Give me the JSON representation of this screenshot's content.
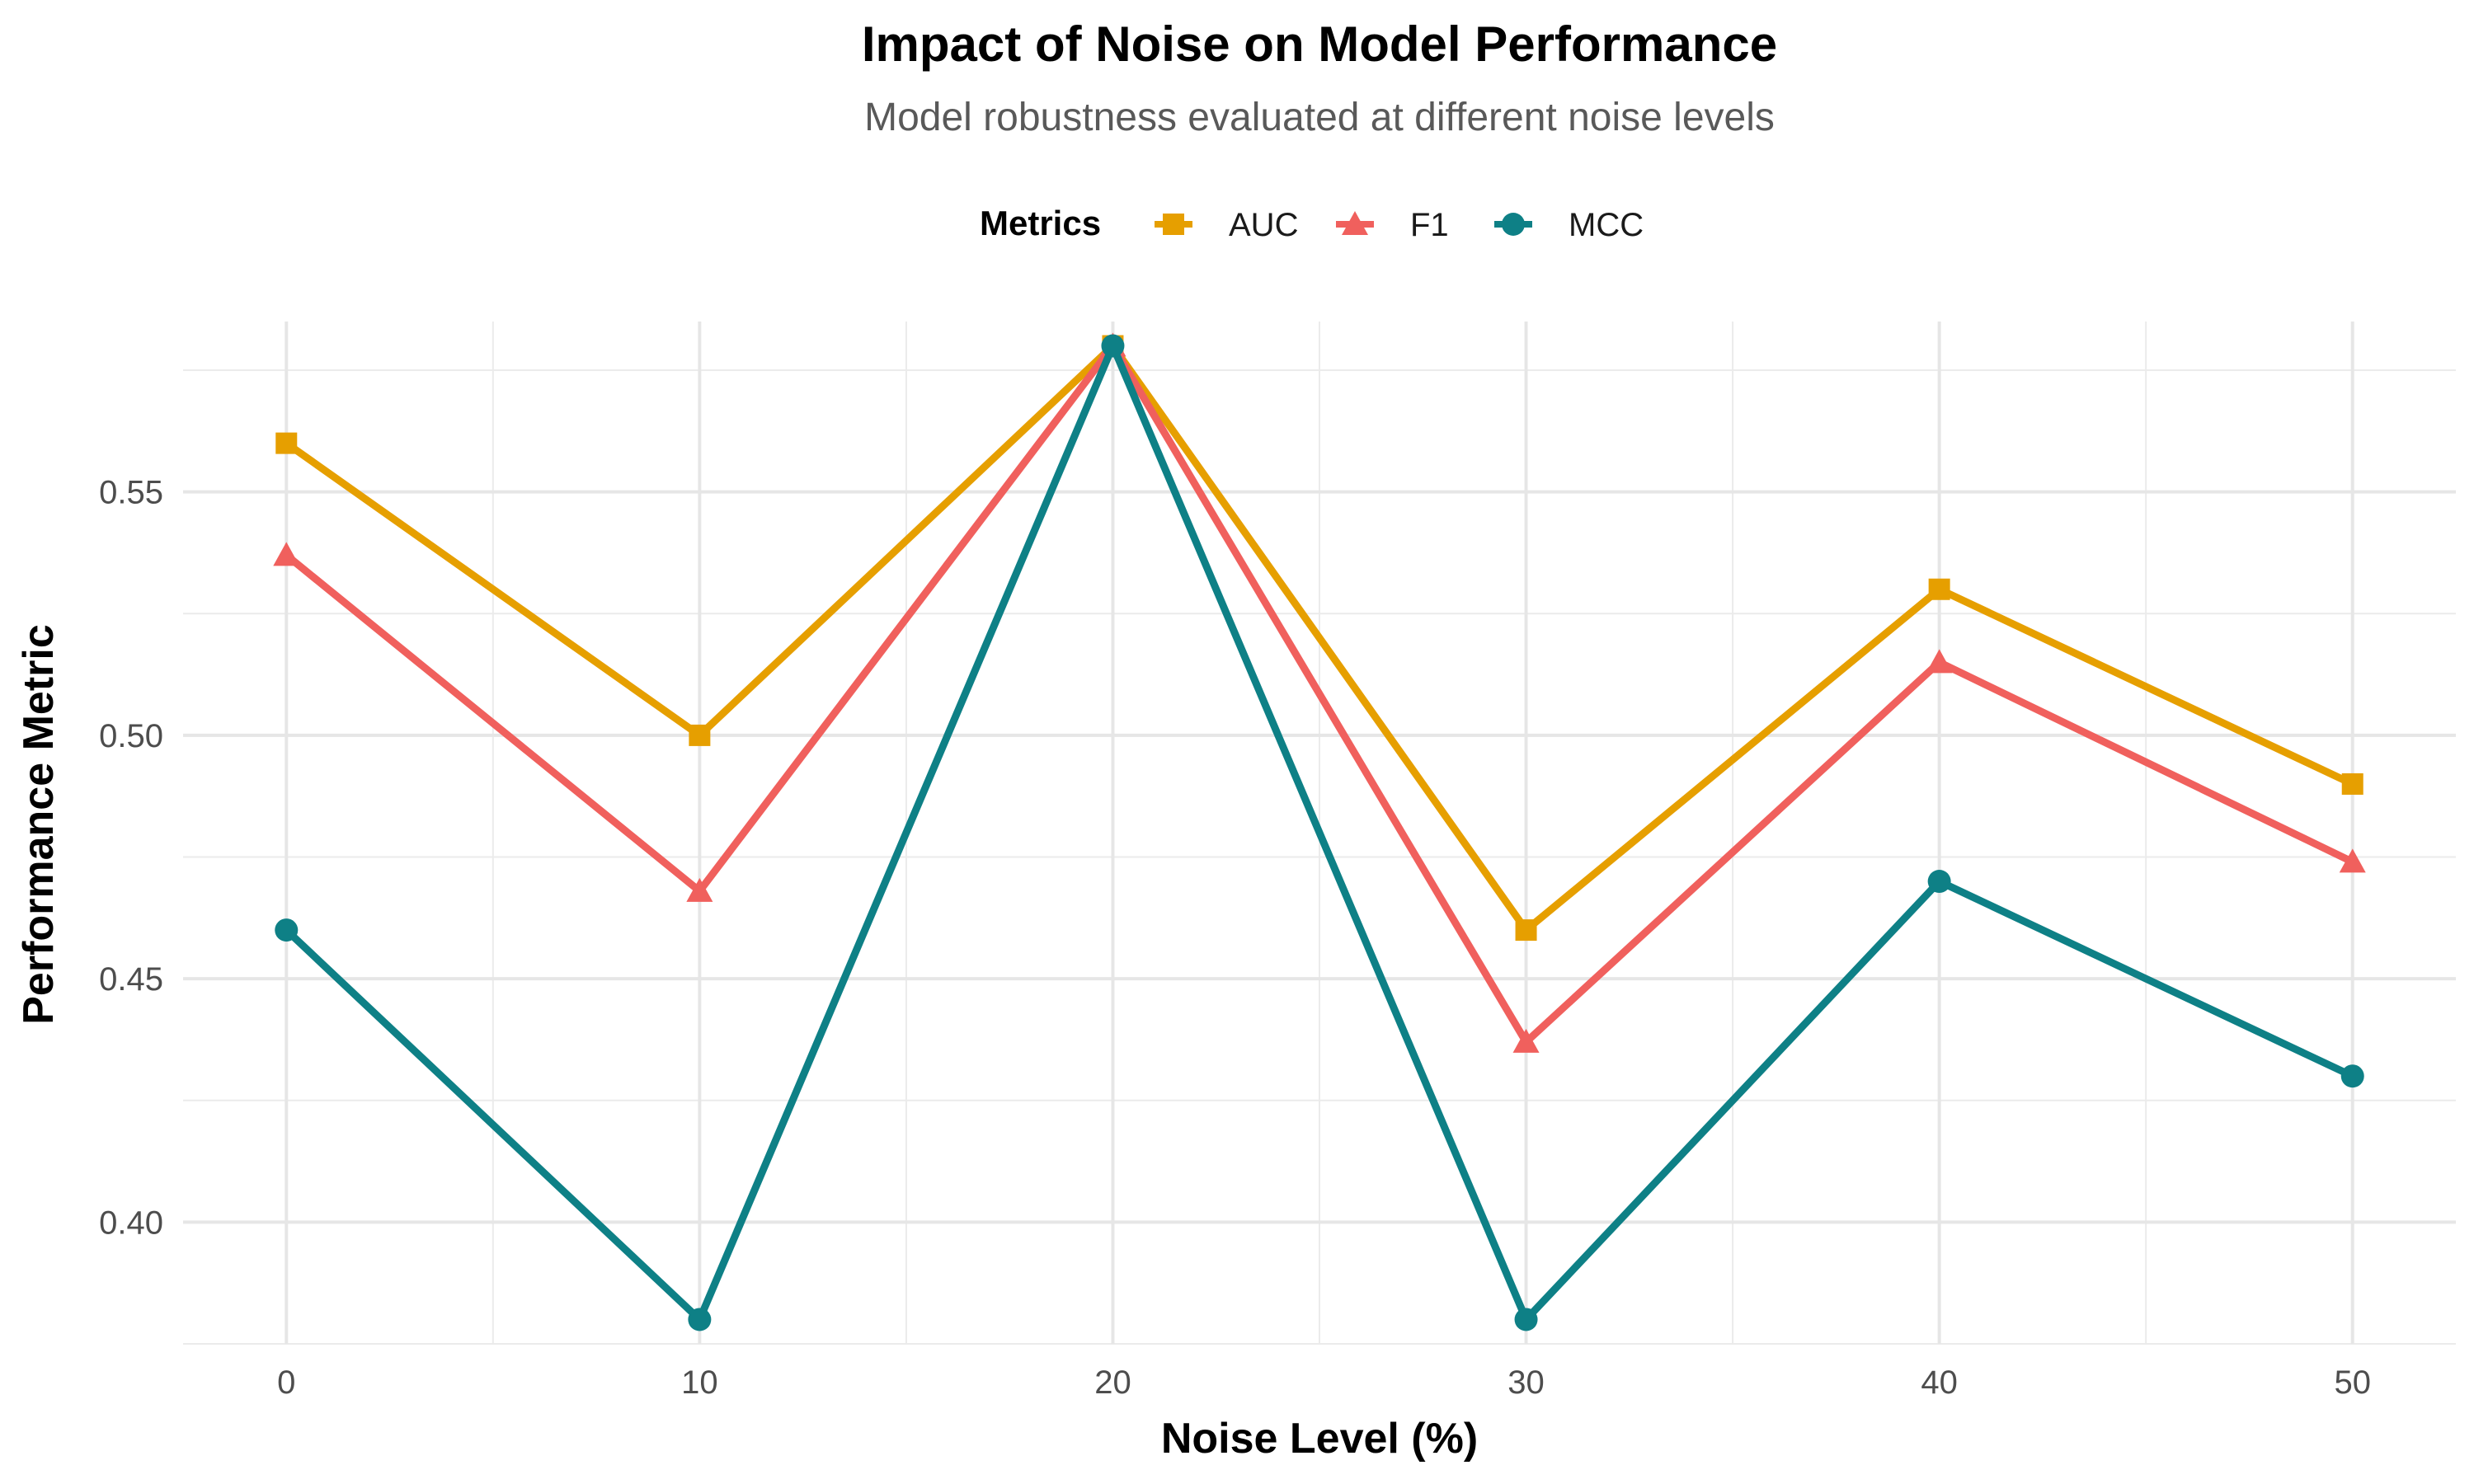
{
  "chart_data": {
    "type": "line",
    "title": "Impact of Noise on Model Performance",
    "subtitle": "Model robustness evaluated at different noise levels",
    "xlabel": "Noise Level (%)",
    "ylabel": "Performance Metric",
    "x": [
      0,
      10,
      20,
      30,
      40,
      50
    ],
    "xlim": [
      -2.5,
      52.5
    ],
    "ylim": [
      0.375,
      0.585
    ],
    "x_ticks": [
      0,
      10,
      20,
      30,
      40,
      50
    ],
    "y_ticks": [
      0.4,
      0.45,
      0.5,
      0.55
    ],
    "y_tick_labels": [
      "0.40",
      "0.45",
      "0.50",
      "0.55"
    ],
    "x_minor": [
      5,
      15,
      25,
      35,
      45
    ],
    "y_minor": [
      0.375,
      0.425,
      0.475,
      0.525,
      0.575
    ],
    "grid": true,
    "legend": {
      "title": "Metrics",
      "placement": "top"
    },
    "series": [
      {
        "name": "AUC",
        "color": "#E69F00",
        "marker": "square",
        "values": [
          0.56,
          0.5,
          0.58,
          0.46,
          0.53,
          0.49
        ]
      },
      {
        "name": "F1",
        "color": "#F0605D",
        "marker": "triangle",
        "values": [
          0.537,
          0.468,
          0.58,
          0.437,
          0.515,
          0.474
        ]
      },
      {
        "name": "MCC",
        "color": "#0E8086",
        "marker": "circle",
        "values": [
          0.46,
          0.38,
          0.58,
          0.38,
          0.47,
          0.43
        ]
      }
    ]
  }
}
